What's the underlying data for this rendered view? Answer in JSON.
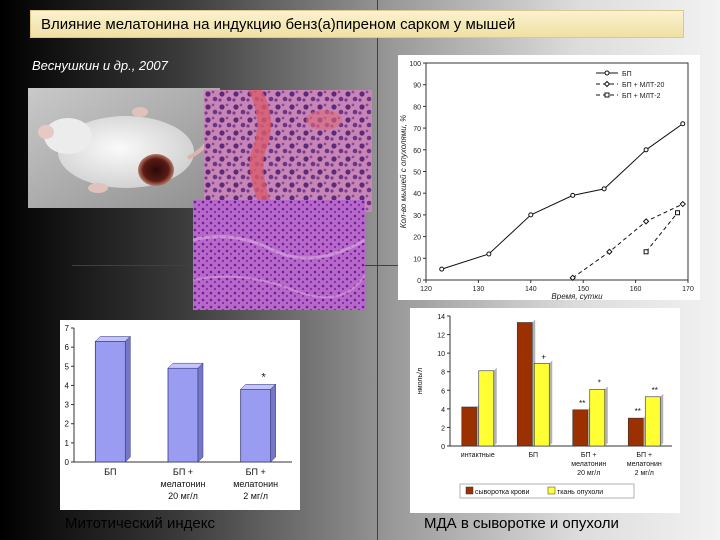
{
  "title": "Влияние мелатонина на индукцию бенз(а)пиреном сарком у мышей",
  "authors": "Веснушкин и др., 2007",
  "chart_data": [
    {
      "type": "line",
      "ylabel": "Кол-во мышей с опухолями, %",
      "xlabel": "Время, сутки",
      "xlim": [
        120,
        170
      ],
      "ylim": [
        0,
        100
      ],
      "xticks": [
        "120",
        "130",
        "140",
        "150",
        "160",
        "170"
      ],
      "yticks": [
        "0",
        "10",
        "20",
        "30",
        "40",
        "50",
        "60",
        "70",
        "80",
        "90",
        "100"
      ],
      "legend_position": "top-right",
      "series": [
        {
          "name": "БП",
          "x": [
            123,
            132,
            140,
            148,
            154,
            162,
            169
          ],
          "y": [
            5,
            12,
            30,
            39,
            42,
            60,
            72
          ]
        },
        {
          "name": "БП + МЛТ-20",
          "x": [
            148,
            155,
            162,
            169
          ],
          "y": [
            1,
            13,
            27,
            35
          ]
        },
        {
          "name": "БП + МЛТ-2",
          "x": [
            162,
            168
          ],
          "y": [
            13,
            31
          ]
        }
      ]
    },
    {
      "type": "bar",
      "ylim": [
        0,
        7
      ],
      "yticks": [
        "0",
        "1",
        "2",
        "3",
        "4",
        "5",
        "6",
        "7"
      ],
      "categories": [
        [
          "БП"
        ],
        [
          "БП +",
          "мелатонин",
          "20 мг/л"
        ],
        [
          "БП +",
          "мелатонин",
          "2 мг/л"
        ]
      ],
      "values": [
        6.3,
        4.9,
        3.8
      ],
      "annotations": [
        "",
        "",
        "*"
      ],
      "bar_color": "#9a9cf2"
    },
    {
      "type": "bar",
      "ylabel": "нмоль/л",
      "ylim": [
        0,
        14
      ],
      "yticks": [
        "0",
        "2",
        "4",
        "6",
        "8",
        "10",
        "12",
        "14"
      ],
      "categories": [
        [
          "интактные"
        ],
        [
          "БП"
        ],
        [
          "БП +",
          "мелатонин",
          "20 мг/л"
        ],
        [
          "БП +",
          "мелатонин",
          "2 мг/л"
        ]
      ],
      "series": [
        {
          "name": "сыворотка крови",
          "color": "#9b3000",
          "values": [
            4.2,
            13.3,
            3.9,
            3.0
          ],
          "marks": [
            "",
            "",
            "**",
            "**"
          ]
        },
        {
          "name": "ткань опухоли",
          "color": "#ffff33",
          "values": [
            8.1,
            8.9,
            6.1,
            5.3
          ],
          "marks": [
            "",
            "+",
            "*",
            "**"
          ]
        }
      ],
      "legend_position": "bottom"
    }
  ],
  "captions": {
    "left": "Митотический индекс",
    "right": "МДА в сыворотке и опухоли"
  }
}
